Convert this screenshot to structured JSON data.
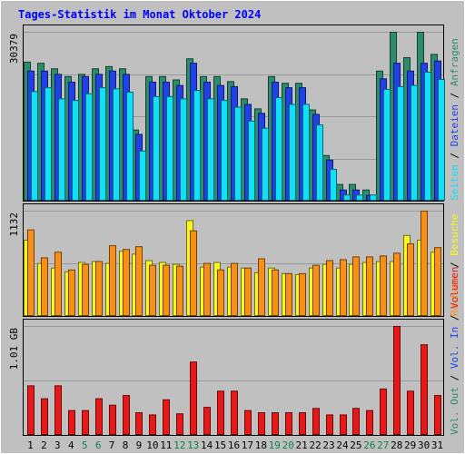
{
  "title": "Tages-Statistik im Monat Oktober 2024",
  "colors": {
    "background": "#c0c0c0",
    "border": "#000000",
    "grid": "#999999",
    "title": "#0000ff",
    "anfragen": "#2c8c6c",
    "dateien": "#2040e8",
    "seiten": "#10e0f8",
    "besuche": "#f8f820",
    "rechner": "#f89018",
    "volumen": "#e81818",
    "weekday_label": "#000000",
    "weekend_label": "#108050"
  },
  "chart_data": [
    {
      "type": "bar",
      "panel": "hits",
      "x": [
        "1",
        "2",
        "3",
        "4",
        "5",
        "6",
        "7",
        "8",
        "9",
        "10",
        "11",
        "12",
        "13",
        "14",
        "15",
        "16",
        "17",
        "18",
        "19",
        "20",
        "21",
        "22",
        "23",
        "24",
        "25",
        "26",
        "27",
        "28",
        "29",
        "30",
        "31"
      ],
      "weekend_days": [
        "5",
        "6",
        "12",
        "13",
        "19",
        "20",
        "26",
        "27"
      ],
      "ymax_label": "30379",
      "ymax": 30379,
      "legend": [
        {
          "text": "Anfragen",
          "color": "#2c8c6c"
        },
        {
          "text": "Dateien",
          "color": "#2040e8"
        },
        {
          "text": "Seiten",
          "color": "#10e0f8"
        }
      ],
      "separators": "/",
      "series": [
        {
          "name": "Anfragen",
          "color": "#2c8c6c",
          "values": [
            25000,
            24800,
            23800,
            22400,
            22800,
            23800,
            24200,
            23800,
            12800,
            22400,
            22400,
            21800,
            25600,
            22400,
            22400,
            21500,
            18400,
            16600,
            22400,
            21200,
            21200,
            16400,
            8200,
            3000,
            3000,
            2000,
            23400,
            30379,
            25800,
            30379,
            26400
          ]
        },
        {
          "name": "Dateien",
          "color": "#2040e8",
          "values": [
            23400,
            23400,
            22800,
            21400,
            22400,
            22800,
            23400,
            22800,
            12000,
            21400,
            21400,
            20800,
            24800,
            21400,
            20800,
            20600,
            17400,
            15800,
            21400,
            20400,
            20400,
            15600,
            7400,
            2000,
            2000,
            1000,
            22000,
            24800,
            23400,
            24800,
            25200
          ]
        },
        {
          "name": "Seiten",
          "color": "#10e0f8",
          "values": [
            19700,
            20400,
            18400,
            18100,
            19300,
            20400,
            20200,
            19600,
            9000,
            18800,
            18800,
            18400,
            19900,
            18400,
            18100,
            16900,
            14400,
            13100,
            18600,
            17400,
            17400,
            13700,
            5700,
            1100,
            1100,
            1100,
            20100,
            20600,
            20800,
            23200,
            21900
          ]
        }
      ]
    },
    {
      "type": "bar",
      "panel": "visits",
      "x": [
        "1",
        "2",
        "3",
        "4",
        "5",
        "6",
        "7",
        "8",
        "9",
        "10",
        "11",
        "12",
        "13",
        "14",
        "15",
        "16",
        "17",
        "18",
        "19",
        "20",
        "21",
        "22",
        "23",
        "24",
        "25",
        "26",
        "27",
        "28",
        "29",
        "30",
        "31"
      ],
      "weekend_days": [
        "5",
        "6",
        "12",
        "13",
        "19",
        "20",
        "26",
        "27"
      ],
      "ymax_label": "1132",
      "ymax": 1132,
      "legend": [
        {
          "text": "Besuche",
          "color": "#f8f820"
        },
        {
          "text": "Rechner",
          "color": "#f89018"
        }
      ],
      "separators": "/",
      "series": [
        {
          "name": "Besuche",
          "color": "#f8f820",
          "values": [
            820,
            570,
            520,
            480,
            580,
            590,
            570,
            700,
            670,
            600,
            580,
            560,
            1030,
            530,
            580,
            530,
            520,
            470,
            520,
            460,
            450,
            520,
            560,
            520,
            560,
            580,
            590,
            590,
            870,
            820,
            690
          ]
        },
        {
          "name": "Rechner",
          "color": "#f89018",
          "values": [
            930,
            630,
            690,
            500,
            560,
            590,
            760,
            720,
            750,
            550,
            550,
            540,
            920,
            570,
            500,
            570,
            520,
            620,
            500,
            460,
            460,
            550,
            600,
            610,
            640,
            640,
            650,
            680,
            780,
            1132,
            740
          ]
        }
      ]
    },
    {
      "type": "bar",
      "panel": "volume",
      "x": [
        "1",
        "2",
        "3",
        "4",
        "5",
        "6",
        "7",
        "8",
        "9",
        "10",
        "11",
        "12",
        "13",
        "14",
        "15",
        "16",
        "17",
        "18",
        "19",
        "20",
        "21",
        "22",
        "23",
        "24",
        "25",
        "26",
        "27",
        "28",
        "29",
        "30",
        "31"
      ],
      "weekend_days": [
        "5",
        "6",
        "12",
        "13",
        "19",
        "20",
        "26",
        "27"
      ],
      "ymax_label": "1.01 GB",
      "ymax": 1.01,
      "legend": [
        {
          "text": "Volumen",
          "color": "#e81818"
        },
        {
          "text": "Vol. In",
          "color": "#2040e8"
        },
        {
          "text": "Vol. Out",
          "color": "#2c8c6c"
        }
      ],
      "separators": "/",
      "series": [
        {
          "name": "Volumen",
          "color": "#e81818",
          "values": [
            0.46,
            0.34,
            0.46,
            0.23,
            0.23,
            0.34,
            0.28,
            0.37,
            0.21,
            0.19,
            0.33,
            0.2,
            0.68,
            0.26,
            0.41,
            0.41,
            0.23,
            0.21,
            0.21,
            0.21,
            0.21,
            0.25,
            0.19,
            0.19,
            0.25,
            0.23,
            0.43,
            1.01,
            0.41,
            0.84,
            0.37
          ]
        }
      ]
    }
  ]
}
